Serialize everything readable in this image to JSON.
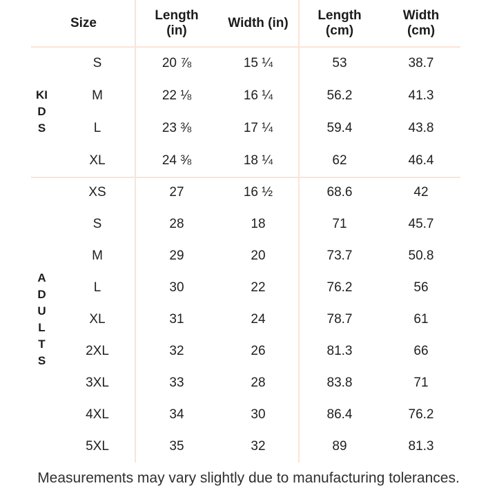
{
  "table": {
    "headers": {
      "size": "Size",
      "length_in": "Length\n(in)",
      "width_in": "Width (in)",
      "length_cm": "Length\n(cm)",
      "width_cm": "Width\n(cm)"
    },
    "groups": [
      {
        "label": "KIDS",
        "rows": [
          {
            "size": "S",
            "length_in": "20 ⅞",
            "width_in": "15 ¼",
            "length_cm": "53",
            "width_cm": "38.7"
          },
          {
            "size": "M",
            "length_in": "22 ⅛",
            "width_in": "16 ¼",
            "length_cm": "56.2",
            "width_cm": "41.3"
          },
          {
            "size": "L",
            "length_in": "23 ⅜",
            "width_in": "17 ¼",
            "length_cm": "59.4",
            "width_cm": "43.8"
          },
          {
            "size": "XL",
            "length_in": "24 ⅜",
            "width_in": "18 ¼",
            "length_cm": "62",
            "width_cm": "46.4"
          }
        ]
      },
      {
        "label": "ADULTS",
        "rows": [
          {
            "size": "XS",
            "length_in": "27",
            "width_in": "16 ½",
            "length_cm": "68.6",
            "width_cm": "42"
          },
          {
            "size": "S",
            "length_in": "28",
            "width_in": "18",
            "length_cm": "71",
            "width_cm": "45.7"
          },
          {
            "size": "M",
            "length_in": "29",
            "width_in": "20",
            "length_cm": "73.7",
            "width_cm": "50.8"
          },
          {
            "size": "L",
            "length_in": "30",
            "width_in": "22",
            "length_cm": "76.2",
            "width_cm": "56"
          },
          {
            "size": "XL",
            "length_in": "31",
            "width_in": "24",
            "length_cm": "78.7",
            "width_cm": "61"
          },
          {
            "size": "2XL",
            "length_in": "32",
            "width_in": "26",
            "length_cm": "81.3",
            "width_cm": "66"
          },
          {
            "size": "3XL",
            "length_in": "33",
            "width_in": "28",
            "length_cm": "83.8",
            "width_cm": "71"
          },
          {
            "size": "4XL",
            "length_in": "34",
            "width_in": "30",
            "length_cm": "86.4",
            "width_cm": "76.2"
          },
          {
            "size": "5XL",
            "length_in": "35",
            "width_in": "32",
            "length_cm": "89",
            "width_cm": "81.3"
          }
        ]
      }
    ]
  },
  "footer": {
    "note": "Measurements may vary slightly due to manufacturing tolerances."
  },
  "colors": {
    "divider": "#fbe3d8",
    "text": "#1d1d1f",
    "footer_text": "#2f2f2f",
    "background": "#ffffff"
  }
}
